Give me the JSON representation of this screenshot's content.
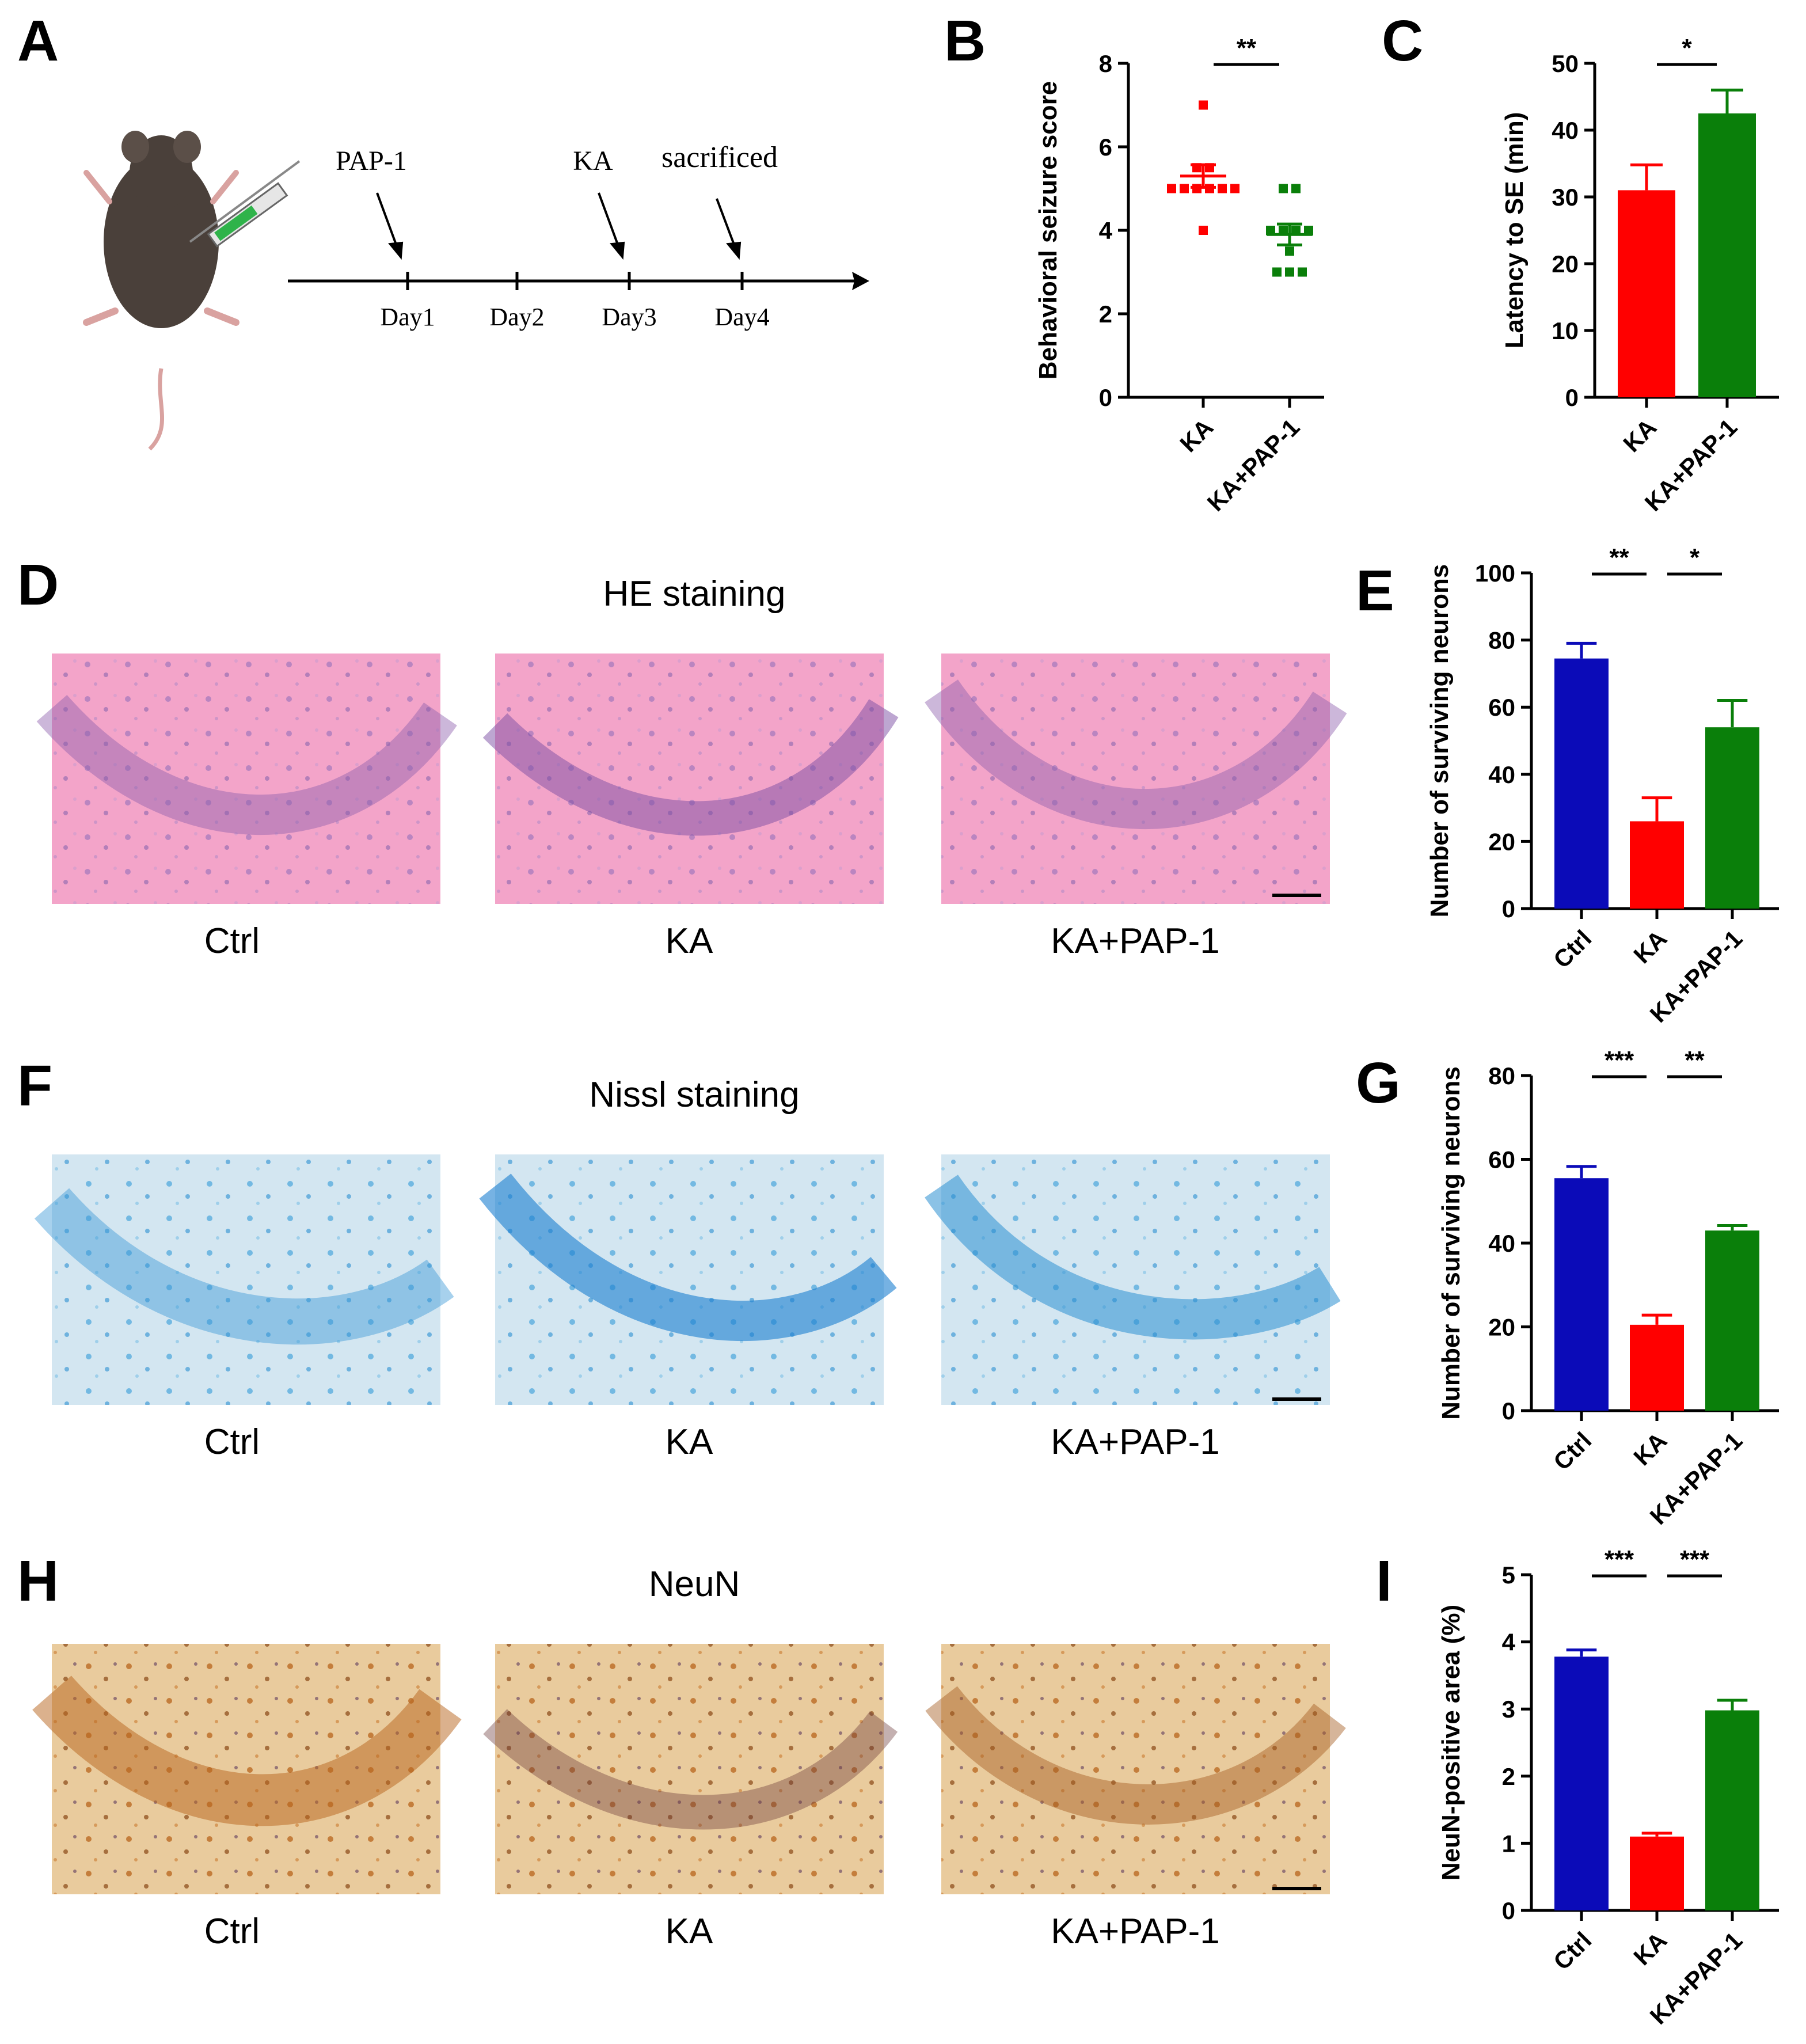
{
  "colors": {
    "blue": "#0b0bb8",
    "red": "#ff0000",
    "green": "#0a7f0a",
    "he_bg": "#f2a2c8",
    "nissl_bg": "#cfe4f0",
    "neun_bg": "#e8c99a"
  },
  "panel_labels": [
    "A",
    "B",
    "C",
    "D",
    "E",
    "F",
    "G",
    "H",
    "I"
  ],
  "timeline": {
    "days": [
      "Day1",
      "Day2",
      "Day3",
      "Day4"
    ],
    "events": [
      "PAP-1",
      "KA",
      "sacrificed"
    ],
    "icons": [
      "mouse-icon",
      "syringe-icon"
    ]
  },
  "staining": {
    "he": {
      "title": "HE staining",
      "groups": [
        "Ctrl",
        "KA",
        "KA+PAP-1"
      ]
    },
    "nissl": {
      "title": "Nissl staining",
      "groups": [
        "Ctrl",
        "KA",
        "KA+PAP-1"
      ]
    },
    "neun": {
      "title": "NeuN",
      "groups": [
        "Ctrl",
        "KA",
        "KA+PAP-1"
      ]
    }
  },
  "chart_data": [
    {
      "id": "B",
      "type": "scatter",
      "title": "",
      "xlabel": "",
      "ylabel": "Behavioral seizure score",
      "ylim": [
        0,
        8
      ],
      "yticks": [
        0,
        2,
        4,
        6,
        8
      ],
      "categories": [
        "KA",
        "KA+PAP-1"
      ],
      "series": [
        {
          "name": "KA",
          "color": "#ff0000",
          "points": [
            7,
            5.5,
            5.5,
            5,
            5,
            5,
            5,
            5,
            5,
            4
          ],
          "mean": 5.3,
          "sem": 0.27
        },
        {
          "name": "KA+PAP-1",
          "color": "#0a7f0a",
          "points": [
            5,
            5,
            4,
            4,
            4,
            4,
            3.5,
            3,
            3,
            3
          ],
          "mean": 3.9,
          "sem": 0.25
        }
      ],
      "significance": [
        {
          "between": [
            0,
            1
          ],
          "label": "**"
        }
      ]
    },
    {
      "id": "C",
      "type": "bar",
      "title": "",
      "xlabel": "",
      "ylabel": "Latency to SE (min)",
      "ylim": [
        0,
        50
      ],
      "yticks": [
        0,
        10,
        20,
        30,
        40,
        50
      ],
      "categories": [
        "KA",
        "KA+PAP-1"
      ],
      "values": [
        31,
        42.5
      ],
      "errors": [
        3.8,
        3.5
      ],
      "colors": [
        "#ff0000",
        "#0a7f0a"
      ],
      "significance": [
        {
          "between": [
            0,
            1
          ],
          "label": "*"
        }
      ]
    },
    {
      "id": "E",
      "type": "bar",
      "title": "",
      "xlabel": "",
      "ylabel": "Number of surviving neurons",
      "ylim": [
        0,
        100
      ],
      "yticks": [
        0,
        20,
        40,
        60,
        80,
        100
      ],
      "categories": [
        "Ctrl",
        "KA",
        "KA+PAP-1"
      ],
      "values": [
        74.5,
        26,
        54
      ],
      "errors": [
        4.5,
        7,
        8
      ],
      "colors": [
        "#0b0bb8",
        "#ff0000",
        "#0a7f0a"
      ],
      "significance": [
        {
          "between": [
            0,
            1
          ],
          "label": "**"
        },
        {
          "between": [
            1,
            2
          ],
          "label": "*"
        }
      ]
    },
    {
      "id": "G",
      "type": "bar",
      "title": "",
      "xlabel": "",
      "ylabel": "Number of surviving neurons",
      "ylim": [
        0,
        80
      ],
      "yticks": [
        0,
        20,
        40,
        60,
        80
      ],
      "categories": [
        "Ctrl",
        "KA",
        "KA+PAP-1"
      ],
      "values": [
        55.5,
        20.5,
        43
      ],
      "errors": [
        2.8,
        2.3,
        1.2
      ],
      "colors": [
        "#0b0bb8",
        "#ff0000",
        "#0a7f0a"
      ],
      "significance": [
        {
          "between": [
            0,
            1
          ],
          "label": "***"
        },
        {
          "between": [
            1,
            2
          ],
          "label": "**"
        }
      ]
    },
    {
      "id": "I",
      "type": "bar",
      "title": "",
      "xlabel": "",
      "ylabel": "NeuN-positive area (%)",
      "ylim": [
        0,
        5
      ],
      "yticks": [
        0,
        1,
        2,
        3,
        4,
        5
      ],
      "categories": [
        "Ctrl",
        "KA",
        "KA+PAP-1"
      ],
      "values": [
        3.78,
        1.1,
        2.98
      ],
      "errors": [
        0.1,
        0.05,
        0.15
      ],
      "colors": [
        "#0b0bb8",
        "#ff0000",
        "#0a7f0a"
      ],
      "significance": [
        {
          "between": [
            0,
            1
          ],
          "label": "***"
        },
        {
          "between": [
            1,
            2
          ],
          "label": "***"
        }
      ]
    }
  ]
}
